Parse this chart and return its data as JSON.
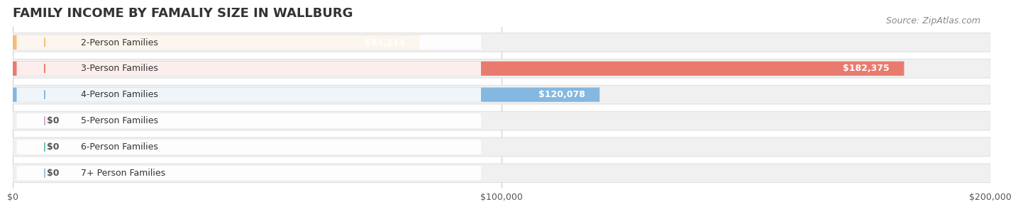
{
  "title": "FAMILY INCOME BY FAMALIY SIZE IN WALLBURG",
  "source": "Source: ZipAtlas.com",
  "categories": [
    "2-Person Families",
    "3-Person Families",
    "4-Person Families",
    "5-Person Families",
    "6-Person Families",
    "7+ Person Families"
  ],
  "values": [
    83214,
    182375,
    120078,
    0,
    0,
    0
  ],
  "bar_colors": [
    "#f5bc7a",
    "#e87b6e",
    "#85b8e0",
    "#d8a8d8",
    "#6dc4b8",
    "#a8b8e8"
  ],
  "label_colors": [
    "#c8884a",
    "#c85a4a",
    "#5090b8",
    "#a870a8",
    "#3a9a88",
    "#7888c0"
  ],
  "track_color": "#f0f0f0",
  "track_border_color": "#e0e0e0",
  "bg_color": "#ffffff",
  "xlim": [
    0,
    200000
  ],
  "xticks": [
    0,
    100000,
    200000
  ],
  "xtick_labels": [
    "$0",
    "$100,000",
    "$200,000"
  ],
  "title_fontsize": 13,
  "bar_label_fontsize": 9,
  "category_fontsize": 9,
  "source_fontsize": 9,
  "bar_height": 0.55,
  "value_labels": [
    "$83,214",
    "$182,375",
    "$120,078",
    "$0",
    "$0",
    "$0"
  ]
}
